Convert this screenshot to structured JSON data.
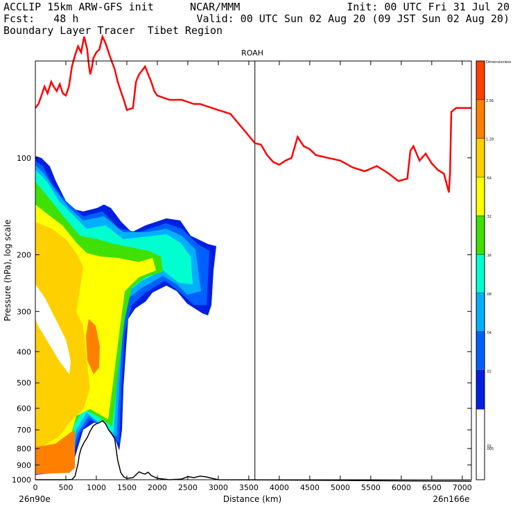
{
  "header": {
    "model_line": "ACCLIP 15km ARW-GFS init",
    "center": "NCAR/MMM",
    "init": "Init: 00 UTC Fri 31 Jul 20",
    "fcst": "Fcst:   48 h",
    "valid": "Valid: 00 UTC Sun 02 Aug 20 (09 JST Sun 02 Aug 20)",
    "product": "Boundary Layer Tracer  Tibet Region"
  },
  "chart_data": {
    "type": "contour",
    "title": "ROAH",
    "xlabel": "Distance (km)",
    "ylabel": "Pressure (hPa), log scale",
    "x_range": [
      0,
      7150
    ],
    "y_range_hpa": [
      1000,
      50
    ],
    "y_log": true,
    "x_ticks": [
      0,
      500,
      1000,
      1500,
      2000,
      2500,
      3000,
      3500,
      4000,
      4500,
      5000,
      5500,
      6000,
      6500,
      7000
    ],
    "y_ticks": [
      100,
      200,
      300,
      400,
      500,
      600,
      700,
      800,
      900,
      1000
    ],
    "start_label": "26n90e",
    "end_label": "26n166e",
    "marker_line_km": 3600,
    "colorbar": {
      "levels": [
        "Dimensionless",
        "2.56",
        "1.28",
        ".64",
        ".32",
        ".16",
        ".08",
        ".04",
        ".02",
        ".01",
        ".005"
      ],
      "colors": [
        "#ff4000",
        "#ff8000",
        "#ffd000",
        "#ffff00",
        "#40e000",
        "#00ffd0",
        "#00b0ff",
        "#0060ff",
        "#0020e0",
        "#ffffff"
      ]
    },
    "tropopause_line": {
      "color": "#ff0000",
      "points": [
        [
          0,
          70
        ],
        [
          50,
          68
        ],
        [
          100,
          64
        ],
        [
          150,
          60
        ],
        [
          200,
          63
        ],
        [
          260,
          58
        ],
        [
          300,
          60
        ],
        [
          350,
          62
        ],
        [
          400,
          59
        ],
        [
          450,
          63
        ],
        [
          500,
          64
        ],
        [
          550,
          60
        ],
        [
          600,
          52
        ],
        [
          650,
          48
        ],
        [
          700,
          45
        ],
        [
          750,
          47
        ],
        [
          800,
          42
        ],
        [
          850,
          46
        ],
        [
          880,
          52
        ],
        [
          900,
          55
        ],
        [
          930,
          52
        ],
        [
          950,
          49
        ],
        [
          1000,
          47
        ],
        [
          1050,
          46
        ],
        [
          1100,
          42
        ],
        [
          1150,
          44
        ],
        [
          1200,
          47
        ],
        [
          1250,
          50
        ],
        [
          1300,
          53
        ],
        [
          1350,
          58
        ],
        [
          1400,
          62
        ],
        [
          1450,
          66
        ],
        [
          1500,
          71
        ],
        [
          1600,
          70
        ],
        [
          1650,
          58
        ],
        [
          1700,
          55
        ],
        [
          1800,
          52
        ],
        [
          1850,
          55
        ],
        [
          1900,
          58
        ],
        [
          1950,
          62
        ],
        [
          2000,
          64
        ],
        [
          2100,
          65
        ],
        [
          2200,
          66
        ],
        [
          2300,
          66
        ],
        [
          2400,
          66
        ],
        [
          2500,
          67
        ],
        [
          2600,
          68
        ],
        [
          2700,
          68
        ],
        [
          2800,
          69
        ],
        [
          3000,
          71
        ],
        [
          3200,
          73
        ],
        [
          3400,
          81
        ],
        [
          3600,
          90
        ],
        [
          3700,
          91
        ],
        [
          3800,
          98
        ],
        [
          3900,
          103
        ],
        [
          4000,
          105
        ],
        [
          4100,
          102
        ],
        [
          4200,
          100
        ],
        [
          4300,
          86
        ],
        [
          4400,
          92
        ],
        [
          4500,
          94
        ],
        [
          4600,
          98
        ],
        [
          4800,
          100
        ],
        [
          5000,
          102
        ],
        [
          5200,
          107
        ],
        [
          5400,
          110
        ],
        [
          5600,
          106
        ],
        [
          5800,
          112
        ],
        [
          5950,
          118
        ],
        [
          6100,
          116
        ],
        [
          6150,
          95
        ],
        [
          6200,
          92
        ],
        [
          6300,
          102
        ],
        [
          6400,
          97
        ],
        [
          6500,
          104
        ],
        [
          6600,
          109
        ],
        [
          6700,
          112
        ],
        [
          6780,
          128
        ],
        [
          6800,
          111
        ],
        [
          6820,
          72
        ],
        [
          6900,
          70
        ],
        [
          7150,
          70
        ]
      ]
    },
    "terrain_line": {
      "color": "#000000",
      "points": [
        [
          0,
          1000
        ],
        [
          300,
          1000
        ],
        [
          500,
          1000
        ],
        [
          600,
          998
        ],
        [
          650,
          975
        ],
        [
          700,
          890
        ],
        [
          720,
          840
        ],
        [
          750,
          800
        ],
        [
          800,
          765
        ],
        [
          850,
          740
        ],
        [
          900,
          705
        ],
        [
          950,
          680
        ],
        [
          1000,
          670
        ],
        [
          1050,
          665
        ],
        [
          1100,
          655
        ],
        [
          1150,
          670
        ],
        [
          1200,
          700
        ],
        [
          1250,
          720
        ],
        [
          1300,
          745
        ],
        [
          1350,
          870
        ],
        [
          1400,
          950
        ],
        [
          1450,
          980
        ],
        [
          1500,
          990
        ],
        [
          1600,
          985
        ],
        [
          1700,
          945
        ],
        [
          1750,
          955
        ],
        [
          1800,
          960
        ],
        [
          1850,
          948
        ],
        [
          1900,
          970
        ],
        [
          2000,
          990
        ],
        [
          2100,
          995
        ],
        [
          2200,
          1000
        ],
        [
          2400,
          995
        ],
        [
          2500,
          978
        ],
        [
          2600,
          985
        ],
        [
          2700,
          975
        ],
        [
          2800,
          980
        ],
        [
          2900,
          990
        ],
        [
          3000,
          1000
        ],
        [
          4000,
          1002
        ],
        [
          5000,
          1005
        ],
        [
          6000,
          1008
        ],
        [
          7150,
          1010
        ]
      ]
    }
  }
}
